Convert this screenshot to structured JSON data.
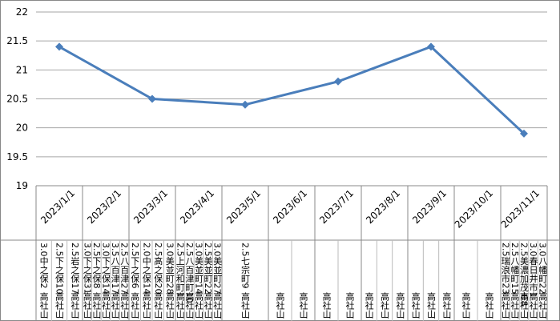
{
  "chart_data": {
    "type": "line",
    "categories": [
      "2023/1/1",
      "2023/2/1",
      "2023/3/1",
      "2023/4/1",
      "2023/5/1",
      "2023/6/1",
      "2023/7/1",
      "2023/8/1",
      "2023/9/1",
      "2023/10/1",
      "2023/11/1"
    ],
    "series": [
      {
        "color": "#4a7ebb",
        "x": [
          "2023/1/1",
          "2023/3/1",
          "2023/5/1",
          "2023/7/1",
          "2023/9/1",
          "2023/11/1"
        ],
        "values": [
          21.4,
          20.5,
          20.4,
          20.8,
          21.4,
          19.9
        ]
      }
    ],
    "ylim": [
      19,
      22
    ],
    "yticks": [
      19,
      19.5,
      20,
      20.5,
      21,
      21.5,
      22
    ],
    "grid": true,
    "sublabels": [
      [
        {
          "name": "3.0中之保2",
          "site": "高社山"
        },
        {
          "name": "2.5下之保10",
          "site": "高社山"
        },
        {
          "name": "2.5岩之保17",
          "site": "高社山"
        }
      ],
      [
        {
          "name": "3.0下之保31",
          "site": "高社山"
        },
        {
          "name": "2.5下之保8",
          "site": "高社山"
        },
        {
          "name": "3.0下之保14",
          "site": "高社山"
        },
        {
          "name": "3.5八百津17",
          "site": "高社山"
        },
        {
          "name": "2.5八百津27",
          "site": "高社山"
        }
      ],
      [
        {
          "name": "2.5下之保6",
          "site": "高社山"
        },
        {
          "name": "2.0中之保14",
          "site": "高社山"
        },
        {
          "name": "2.5高之保20",
          "site": "高社山"
        },
        {
          "name": "3.0美並町28",
          "site": "高社山"
        }
      ],
      [
        {
          "name": "2.5上河和町1",
          "site": "高社山"
        },
        {
          "name": "2.5八百津町10",
          "site": "高社山"
        },
        {
          "name": "3.0美並町14",
          "site": "高社山"
        },
        {
          "name": "2.5美並町22",
          "site": "高社山"
        },
        {
          "name": "3.0美並町27",
          "site": "高社山"
        }
      ],
      [
        {
          "name": "2.5七宗町9",
          "site": "高社山"
        }
      ],
      [
        {
          "site": "高社山"
        },
        {
          "site": "高社山"
        }
      ],
      [
        {
          "site": "高社山"
        },
        {
          "site": "高社山"
        }
      ],
      [
        {
          "site": "高社山"
        },
        {
          "site": "高社山"
        },
        {
          "site": "高社山"
        }
      ],
      [
        {
          "site": "高社山"
        },
        {
          "site": "高社山"
        },
        {
          "site": "高社山"
        }
      ],
      [
        {
          "site": "高社山"
        },
        {
          "site": "高社山"
        }
      ],
      [
        {
          "name": "2.5瑞浪市23",
          "site": "高社山"
        },
        {
          "name": "2.5八幡町15",
          "site": "高社山"
        },
        {
          "name": "2.5美濃加茂市8",
          "site": "高社山"
        },
        {
          "name": "3.0春日井市1",
          "site": "高社山"
        },
        {
          "name": "3.0八幡町22",
          "site": "高社山"
        }
      ]
    ]
  }
}
